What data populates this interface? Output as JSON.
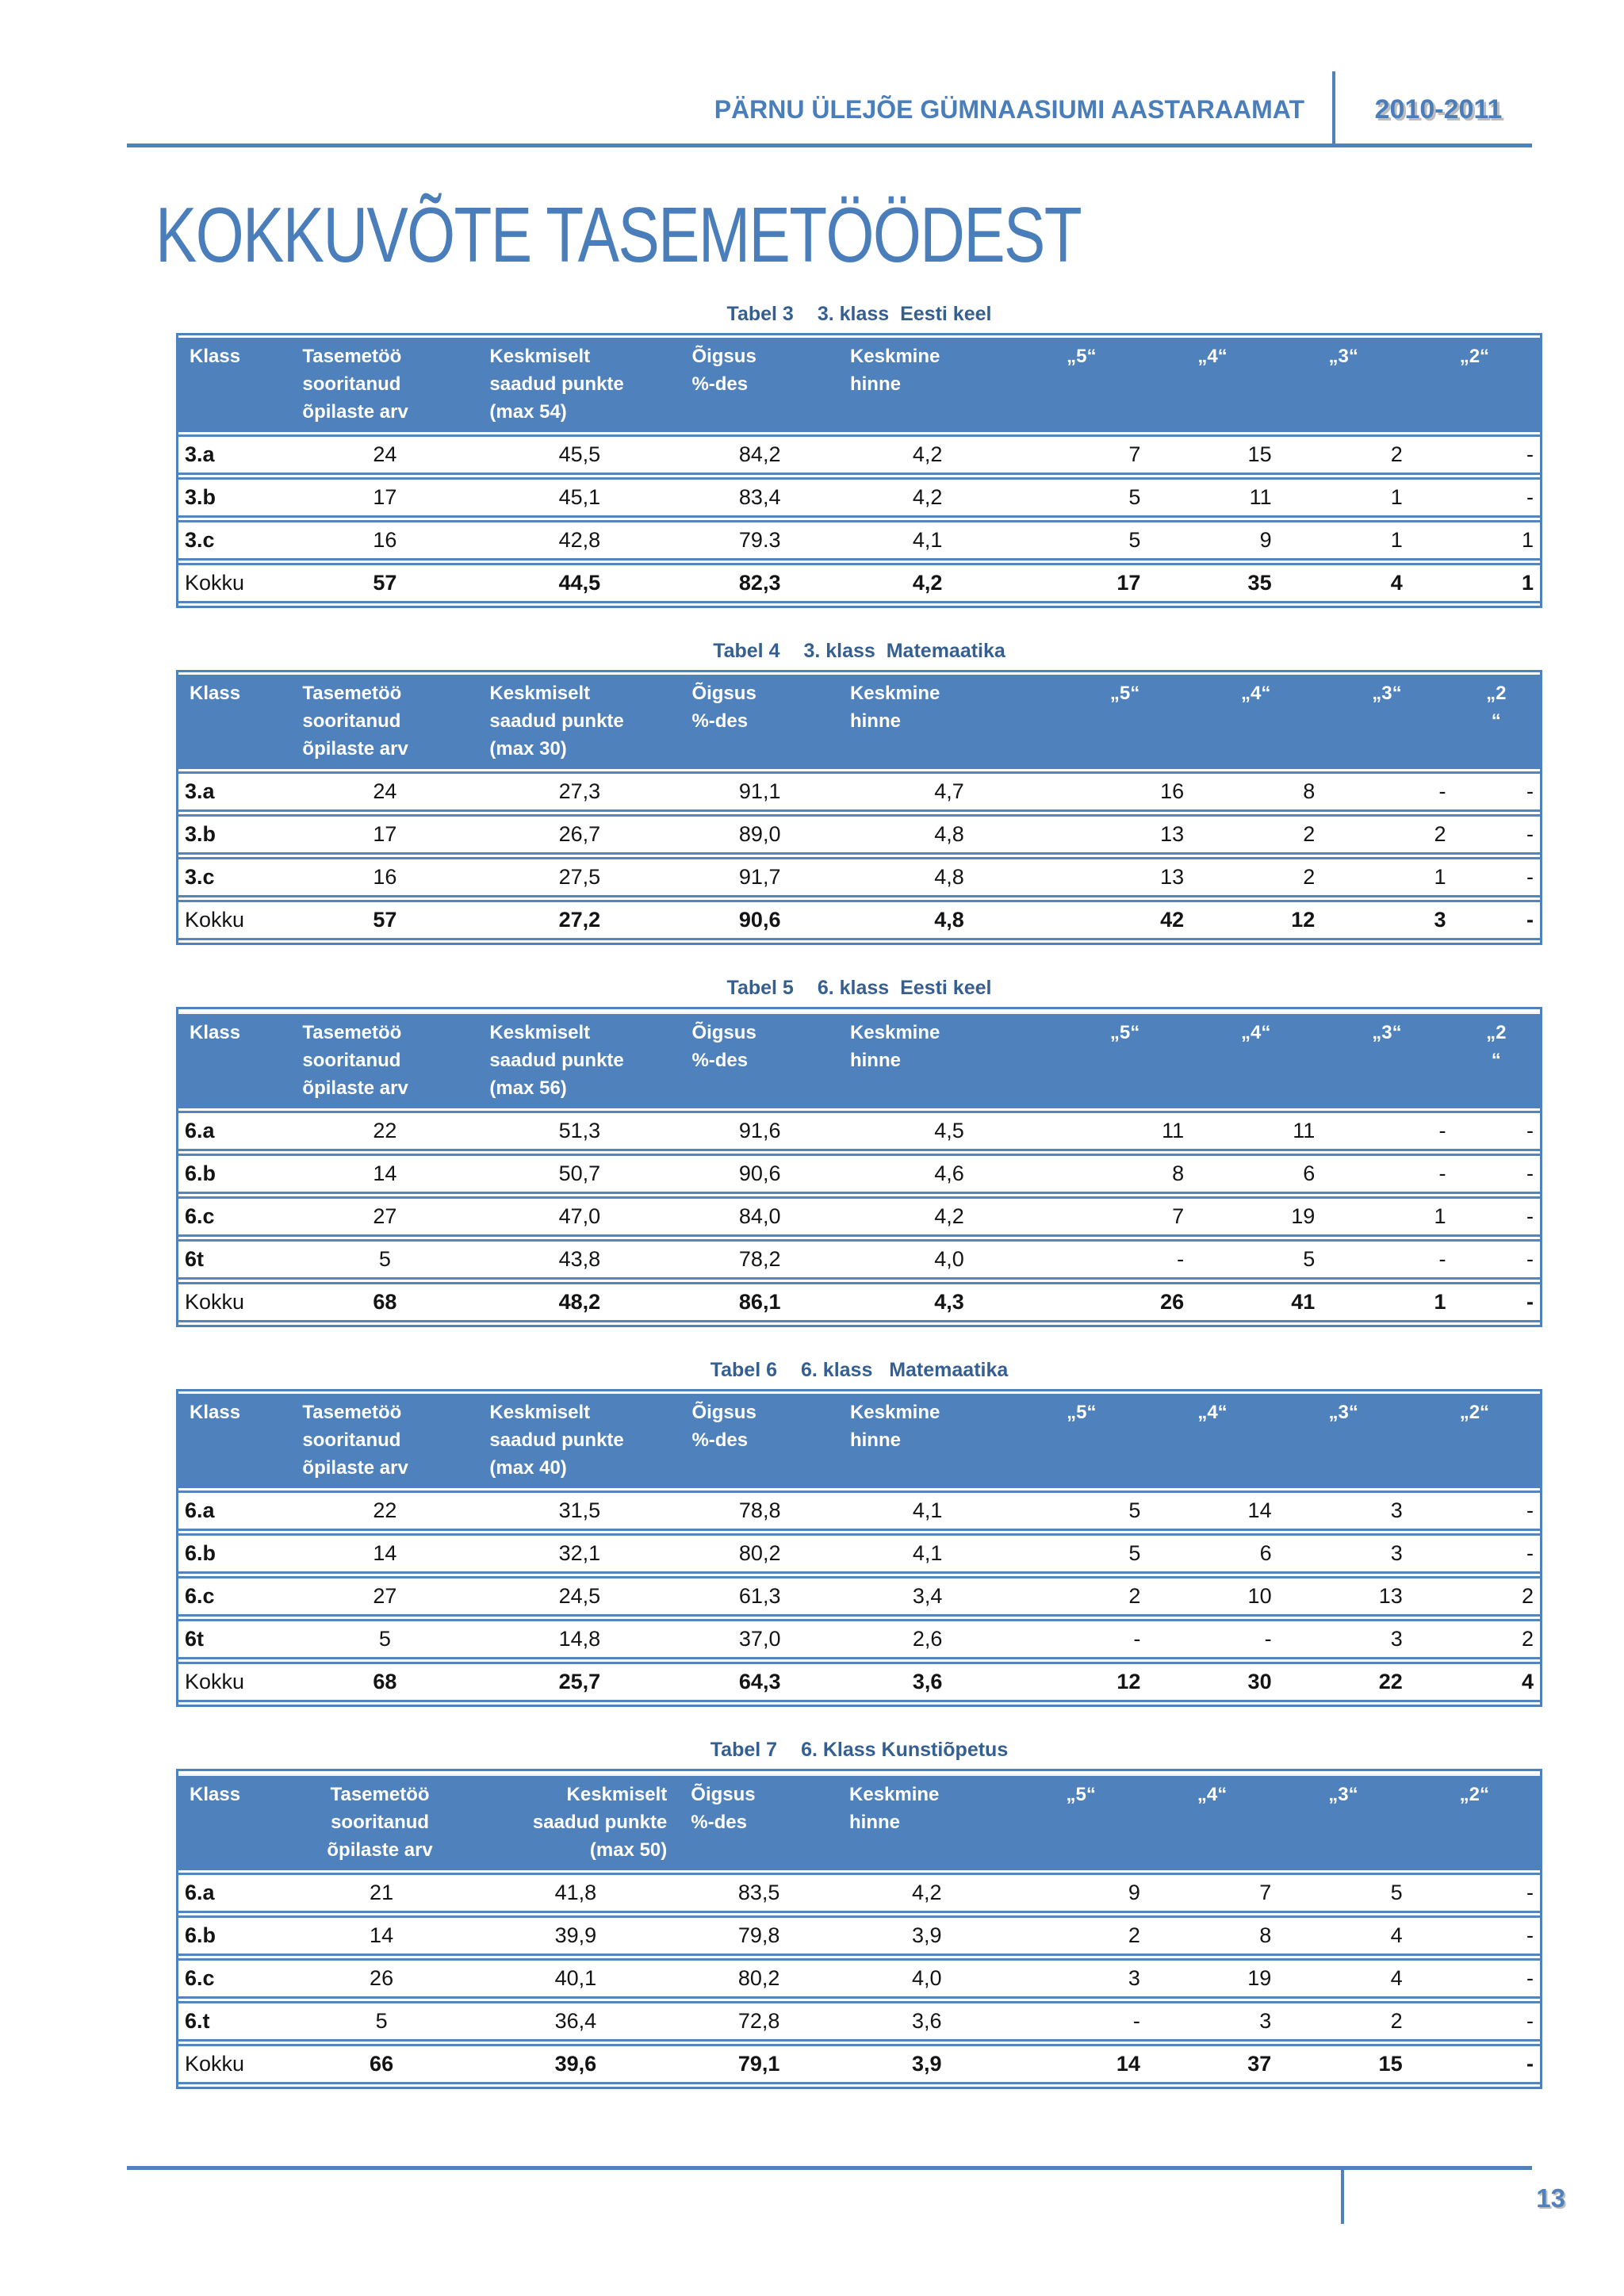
{
  "colors": {
    "accent": "#4f81bd",
    "caption_text": "#365f91",
    "title_text": "#4a7ebb"
  },
  "running_header": {
    "journal": "PÄRNU ÜLEJÕE GÜMNAASIUMI AASTARAAMAT",
    "year": "2010-2011"
  },
  "page_title": "KOKKUVÕTE TASEMETÖÖDEST",
  "page_number": "13",
  "tables": [
    {
      "caption_label": "Tabel 3",
      "caption_title": "3. klass  Eesti keel",
      "headers": [
        "Klass",
        "Tasemetöö\nsooritanud\nõpilaste arv",
        "Keskmiselt\nsaadud punkte\n(max 54)",
        "Õigsus\n%-des",
        "Keskmine\nhinne",
        "„5“",
        "„4“",
        "„3“",
        "„2“"
      ],
      "rows": [
        {
          "label": "3.a",
          "total": false,
          "values": [
            "24",
            "45,5",
            "84,2",
            "4,2",
            "7",
            "15",
            "2",
            "-"
          ]
        },
        {
          "label": "3.b",
          "total": false,
          "values": [
            "17",
            "45,1",
            "83,4",
            "4,2",
            "5",
            "11",
            "1",
            "-"
          ]
        },
        {
          "label": "3.c",
          "total": false,
          "values": [
            "16",
            "42,8",
            "79.3",
            "4,1",
            "5",
            "9",
            "1",
            "1"
          ]
        },
        {
          "label": "Kokku",
          "total": true,
          "values": [
            "57",
            "44,5",
            "82,3",
            "4,2",
            "17",
            "35",
            "4",
            "1"
          ]
        }
      ]
    },
    {
      "caption_label": "Tabel 4",
      "caption_title": "3. klass  Matemaatika",
      "headers": [
        "Klass",
        "Tasemetöö\nsooritanud\nõpilaste arv",
        "Keskmiselt\nsaadud punkte\n(max 30)",
        "Õigsus\n%-des",
        "Keskmine\nhinne",
        "„5“",
        "„4“",
        "„3“",
        "„2\n“"
      ],
      "rows": [
        {
          "label": "3.a",
          "total": false,
          "values": [
            "24",
            "27,3",
            "91,1",
            "4,7",
            "16",
            "8",
            "-",
            "-"
          ]
        },
        {
          "label": "3.b",
          "total": false,
          "values": [
            "17",
            "26,7",
            "89,0",
            "4,8",
            "13",
            "2",
            "2",
            "-"
          ]
        },
        {
          "label": "3.c",
          "total": false,
          "values": [
            "16",
            "27,5",
            "91,7",
            "4,8",
            "13",
            "2",
            "1",
            "-"
          ]
        },
        {
          "label": "Kokku",
          "total": true,
          "values": [
            "57",
            "27,2",
            "90,6",
            "4,8",
            "42",
            "12",
            "3",
            "-"
          ]
        }
      ]
    },
    {
      "caption_label": "Tabel 5",
      "caption_title": "6. klass  Eesti keel",
      "headers": [
        "Klass",
        "Tasemetöö\nsooritanud\nõpilaste arv",
        "Keskmiselt\nsaadud punkte\n(max 56)",
        "Õigsus\n%-des",
        "Keskmine\nhinne",
        "„5“",
        "„4“",
        "„3“",
        "„2\n“"
      ],
      "rows": [
        {
          "label": "6.a",
          "total": false,
          "values": [
            "22",
            "51,3",
            "91,6",
            "4,5",
            "11",
            "11",
            "-",
            "-"
          ]
        },
        {
          "label": "6.b",
          "total": false,
          "values": [
            "14",
            "50,7",
            "90,6",
            "4,6",
            "8",
            "6",
            "-",
            "-"
          ]
        },
        {
          "label": "6.c",
          "total": false,
          "values": [
            "27",
            "47,0",
            "84,0",
            "4,2",
            "7",
            "19",
            "1",
            "-"
          ]
        },
        {
          "label": "6t",
          "total": false,
          "values": [
            "5",
            "43,8",
            "78,2",
            "4,0",
            "-",
            "5",
            "-",
            "-"
          ]
        },
        {
          "label": "Kokku",
          "total": true,
          "values": [
            "68",
            "48,2",
            "86,1",
            "4,3",
            "26",
            "41",
            "1",
            "-"
          ]
        }
      ]
    },
    {
      "caption_label": "Tabel 6",
      "caption_title": "6. klass   Matemaatika",
      "headers": [
        "Klass",
        "Tasemetöö\nsooritanud\nõpilaste arv",
        "Keskmiselt\nsaadud punkte\n(max 40)",
        "Õigsus\n%-des",
        "Keskmine\nhinne",
        "„5“",
        "„4“",
        "„3“",
        "„2“"
      ],
      "rows": [
        {
          "label": "6.a",
          "total": false,
          "values": [
            "22",
            "31,5",
            "78,8",
            "4,1",
            "5",
            "14",
            "3",
            "-"
          ]
        },
        {
          "label": "6.b",
          "total": false,
          "values": [
            "14",
            "32,1",
            "80,2",
            "4,1",
            "5",
            "6",
            "3",
            "-"
          ]
        },
        {
          "label": "6.c",
          "total": false,
          "values": [
            "27",
            "24,5",
            "61,3",
            "3,4",
            "2",
            "10",
            "13",
            "2"
          ]
        },
        {
          "label": "6t",
          "total": false,
          "values": [
            "5",
            "14,8",
            "37,0",
            "2,6",
            "-",
            "-",
            "3",
            "2"
          ]
        },
        {
          "label": "Kokku",
          "total": true,
          "values": [
            "68",
            "25,7",
            "64,3",
            "3,6",
            "12",
            "30",
            "22",
            "4"
          ]
        }
      ]
    },
    {
      "caption_label": "Tabel 7",
      "caption_title": "6. Klass Kunstiõpetus",
      "headers": [
        "Klass",
        "Tasemetöö\nsooritanud\nõpilaste arv",
        "Keskmiselt\nsaadud punkte\n(max 50)",
        "Õigsus\n%-des",
        "Keskmine\nhinne",
        "„5“",
        "„4“",
        "„3“",
        "„2“"
      ],
      "rows": [
        {
          "label": "6.a",
          "total": false,
          "values": [
            "21",
            "41,8",
            "83,5",
            "4,2",
            "9",
            "7",
            "5",
            "-"
          ]
        },
        {
          "label": "6.b",
          "total": false,
          "values": [
            "14",
            "39,9",
            "79,8",
            "3,9",
            "2",
            "8",
            "4",
            "-"
          ]
        },
        {
          "label": "6.c",
          "total": false,
          "values": [
            "26",
            "40,1",
            "80,2",
            "4,0",
            "3",
            "19",
            "4",
            "-"
          ]
        },
        {
          "label": "6.t",
          "total": false,
          "values": [
            "5",
            "36,4",
            "72,8",
            "3,6",
            "-",
            "3",
            "2",
            "-"
          ]
        },
        {
          "label": "Kokku",
          "total": true,
          "values": [
            "66",
            "39,6",
            "79,1",
            "3,9",
            "14",
            "37",
            "15",
            "-"
          ]
        }
      ]
    }
  ]
}
